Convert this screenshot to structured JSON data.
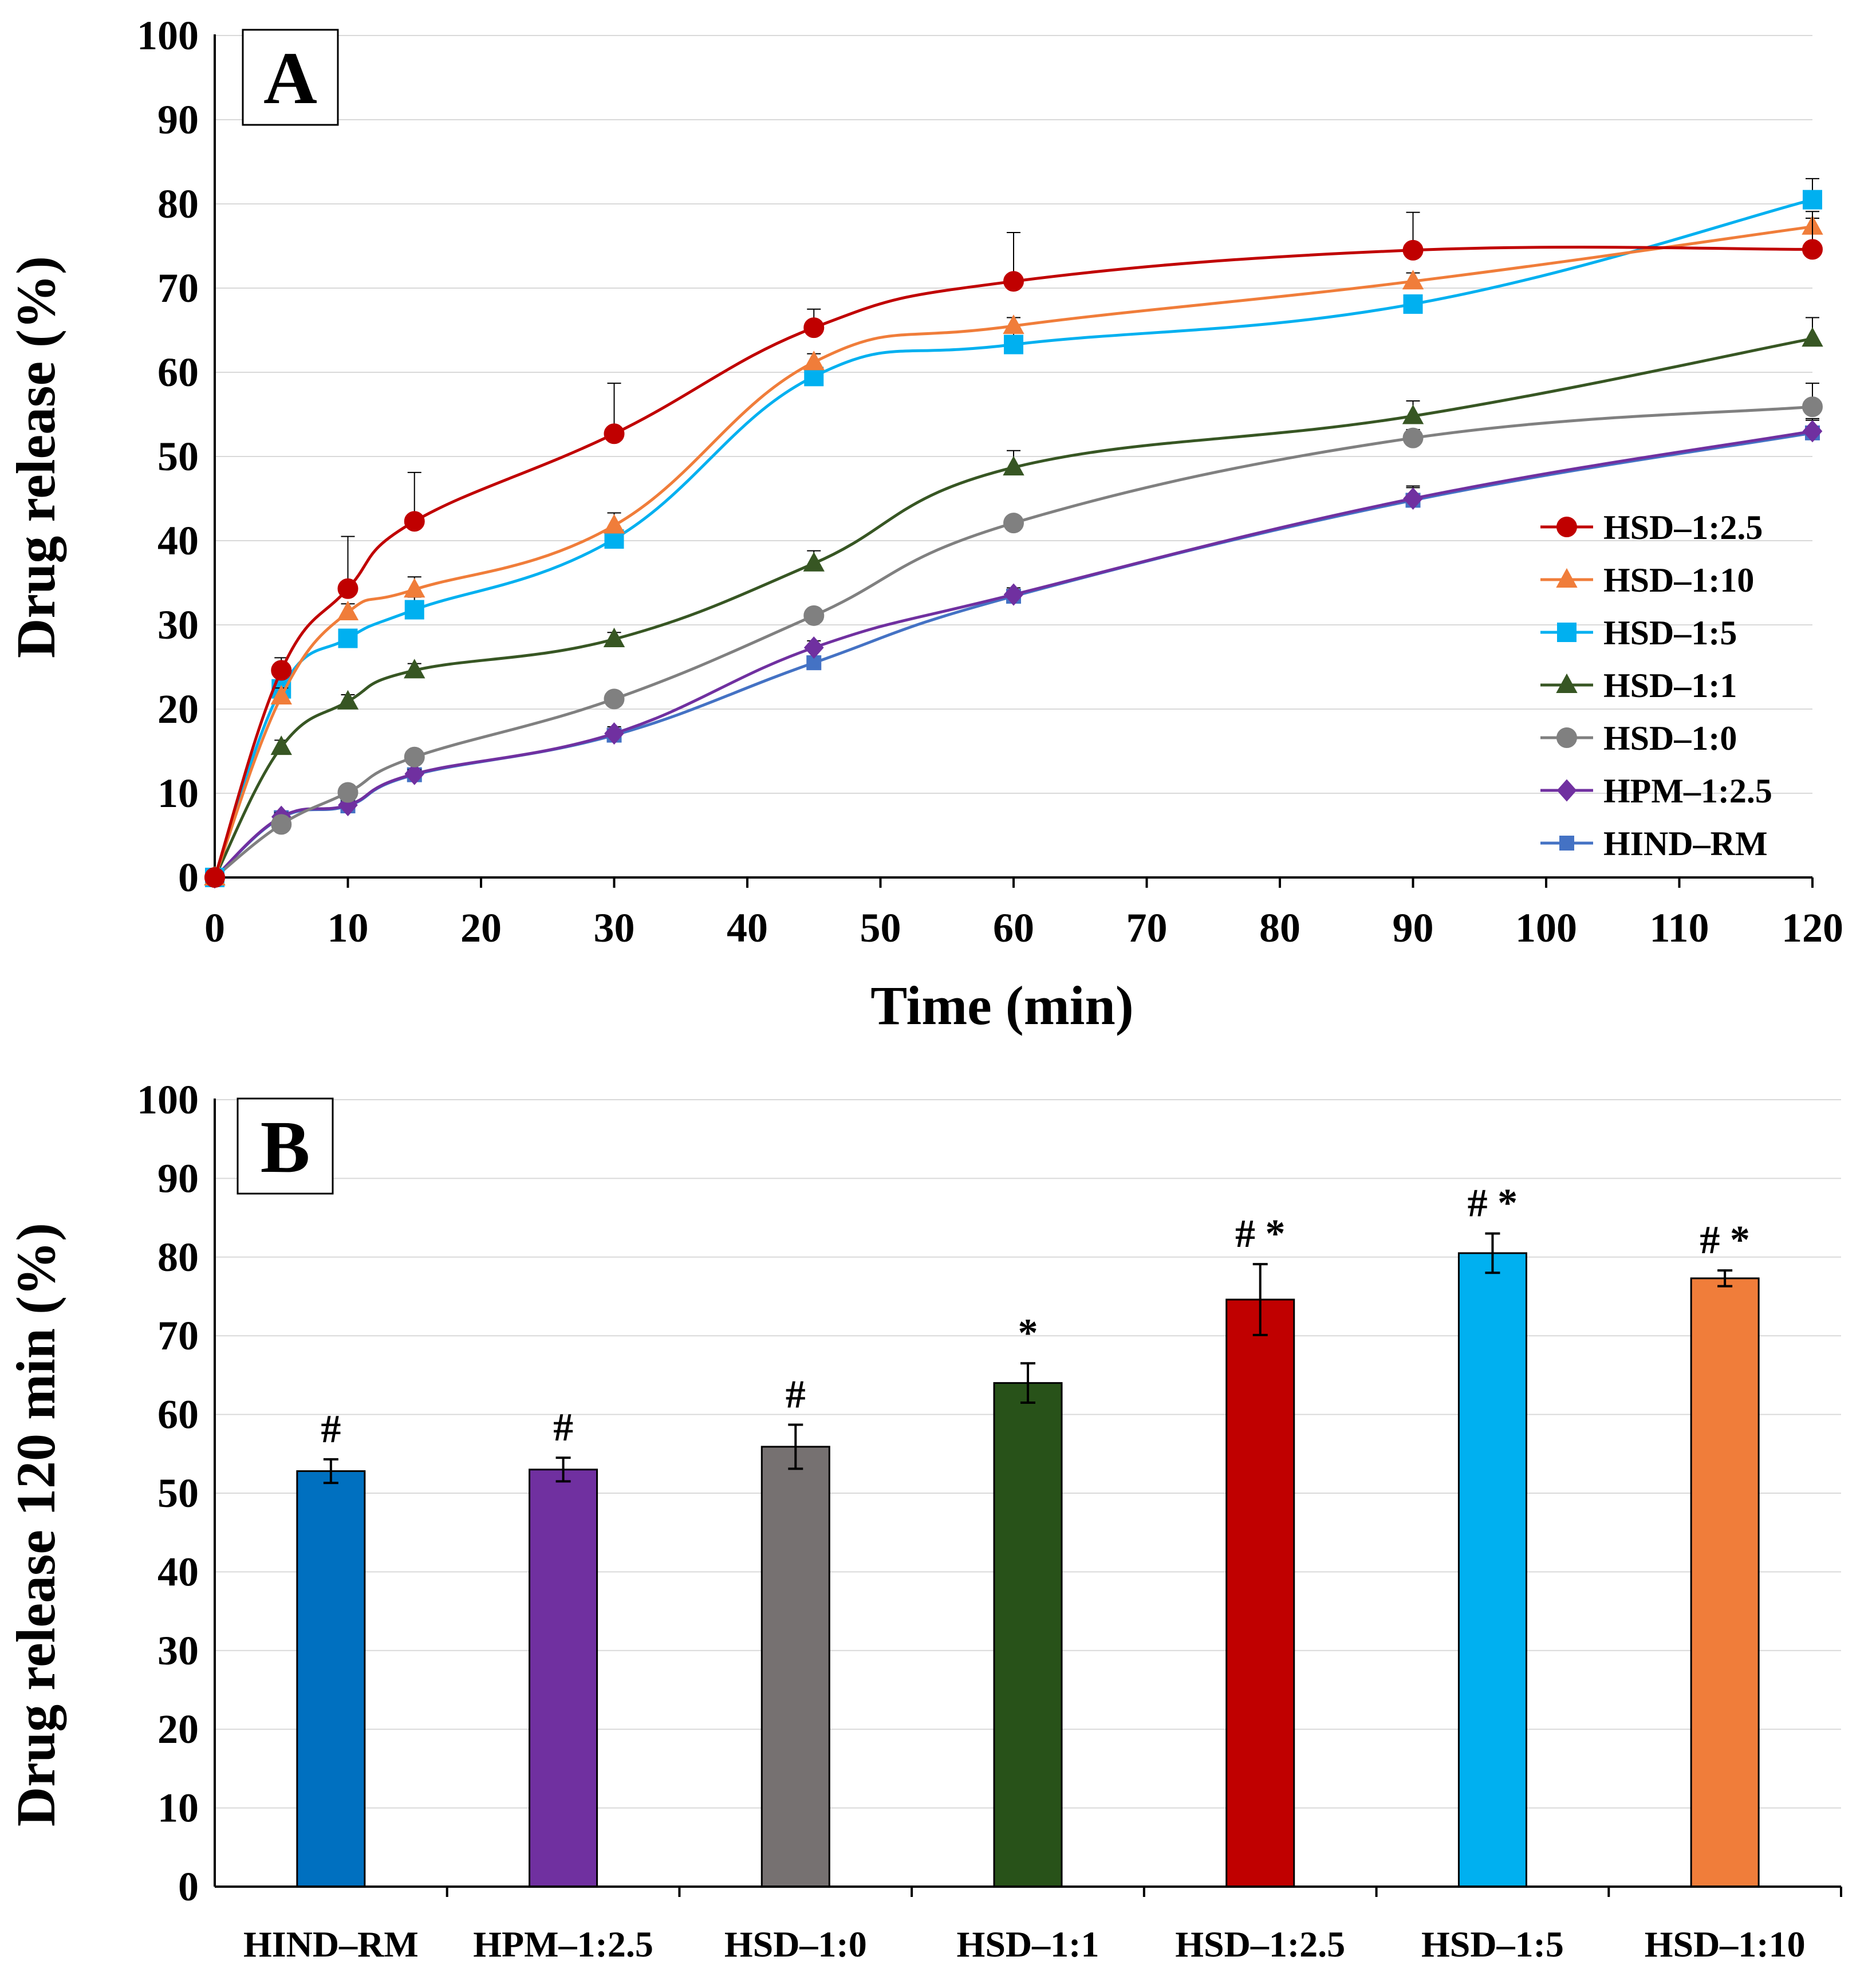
{
  "chart_data": [
    {
      "panel_label": "A",
      "type": "line",
      "xlabel": "Time (min)",
      "ylabel": "Drug release (%)",
      "xlim": [
        0,
        120
      ],
      "ylim": [
        0,
        100
      ],
      "xticks": [
        "0",
        "10",
        "20",
        "30",
        "40",
        "50",
        "60",
        "70",
        "80",
        "90",
        "100",
        "110",
        "120"
      ],
      "yticks": [
        "0",
        "10",
        "20",
        "30",
        "40",
        "50",
        "60",
        "70",
        "80",
        "90",
        "100"
      ],
      "grid": true,
      "legend_position": "right-middle",
      "x": [
        0,
        5,
        10,
        15,
        30,
        45,
        60,
        90,
        120
      ],
      "series": [
        {
          "name": "HSD–1:2.5",
          "color": "#C00000",
          "marker": "circle",
          "values": [
            0,
            24.6,
            34.3,
            42.3,
            52.7,
            65.3,
            70.8,
            74.5,
            74.6
          ],
          "errors": [
            0,
            1.5,
            6.2,
            5.8,
            6.0,
            2.2,
            5.8,
            4.5,
            4.5
          ]
        },
        {
          "name": "HSD–1:10",
          "color": "#F07D3A",
          "marker": "triangle",
          "values": [
            0,
            21.5,
            31.5,
            34.2,
            41.8,
            61.2,
            65.5,
            70.8,
            77.3
          ],
          "errors": [
            0,
            1.0,
            1.0,
            1.5,
            1.5,
            1.0,
            1.0,
            1.0,
            1.0
          ]
        },
        {
          "name": "HSD–1:5",
          "color": "#00B0F0",
          "marker": "square",
          "values": [
            0,
            22.4,
            28.4,
            31.8,
            40.2,
            59.5,
            63.3,
            68.1,
            80.5
          ],
          "errors": [
            0,
            1.0,
            1.0,
            1.5,
            1.0,
            1.0,
            2.0,
            1.0,
            2.5
          ]
        },
        {
          "name": "HSD–1:1",
          "color": "#375623",
          "marker": "triangle",
          "values": [
            0,
            15.5,
            20.9,
            24.6,
            28.3,
            37.3,
            48.7,
            54.8,
            64.0
          ],
          "errors": [
            0,
            0.8,
            0.8,
            0.8,
            0.8,
            1.5,
            2.0,
            1.8,
            2.5
          ]
        },
        {
          "name": "HSD–1:0",
          "color": "#808080",
          "marker": "circle",
          "values": [
            0,
            6.3,
            10.1,
            14.3,
            21.2,
            31.1,
            42.1,
            52.2,
            55.9
          ],
          "errors": [
            0,
            0.6,
            0.6,
            0.6,
            0.8,
            0.8,
            0.8,
            1.0,
            2.8
          ]
        },
        {
          "name": "HPM–1:2.5",
          "color": "#7030A0",
          "marker": "diamond",
          "values": [
            0,
            7.2,
            8.6,
            12.3,
            17.1,
            27.3,
            33.6,
            45.0,
            53.0
          ],
          "errors": [
            0,
            0.5,
            0.5,
            0.5,
            0.8,
            0.8,
            0.8,
            1.5,
            1.5
          ]
        },
        {
          "name": "HIND–RM",
          "color": "#4472C4",
          "marker": "square-small",
          "values": [
            0,
            7.1,
            8.5,
            12.2,
            16.9,
            25.5,
            33.4,
            44.8,
            52.8
          ],
          "errors": [
            0,
            0.5,
            0.5,
            0.5,
            0.8,
            0.8,
            0.8,
            1.5,
            1.5
          ]
        }
      ]
    },
    {
      "panel_label": "B",
      "type": "bar",
      "xlabel": "",
      "ylabel": "Drug release 120 min  (%)",
      "ylim": [
        0,
        100
      ],
      "yticks": [
        "0",
        "10",
        "20",
        "30",
        "40",
        "50",
        "60",
        "70",
        "80",
        "90",
        "100"
      ],
      "grid": true,
      "categories": [
        "HIND–RM",
        "HPM–1:2.5",
        "HSD–1:0",
        "HSD–1:1",
        "HSD–1:2.5",
        "HSD–1:5",
        "HSD–1:10"
      ],
      "values": [
        52.8,
        53.0,
        55.9,
        64.0,
        74.6,
        80.5,
        77.3
      ],
      "errors": [
        1.5,
        1.5,
        2.8,
        2.5,
        4.5,
        2.5,
        1.0
      ],
      "colors": [
        "#0070C0",
        "#7030A0",
        "#767171",
        "#285219",
        "#C00000",
        "#00B0F0",
        "#F07D3A"
      ],
      "annotations": [
        "#",
        "#",
        "#",
        "*",
        "# *",
        "# *",
        "# *"
      ]
    }
  ]
}
